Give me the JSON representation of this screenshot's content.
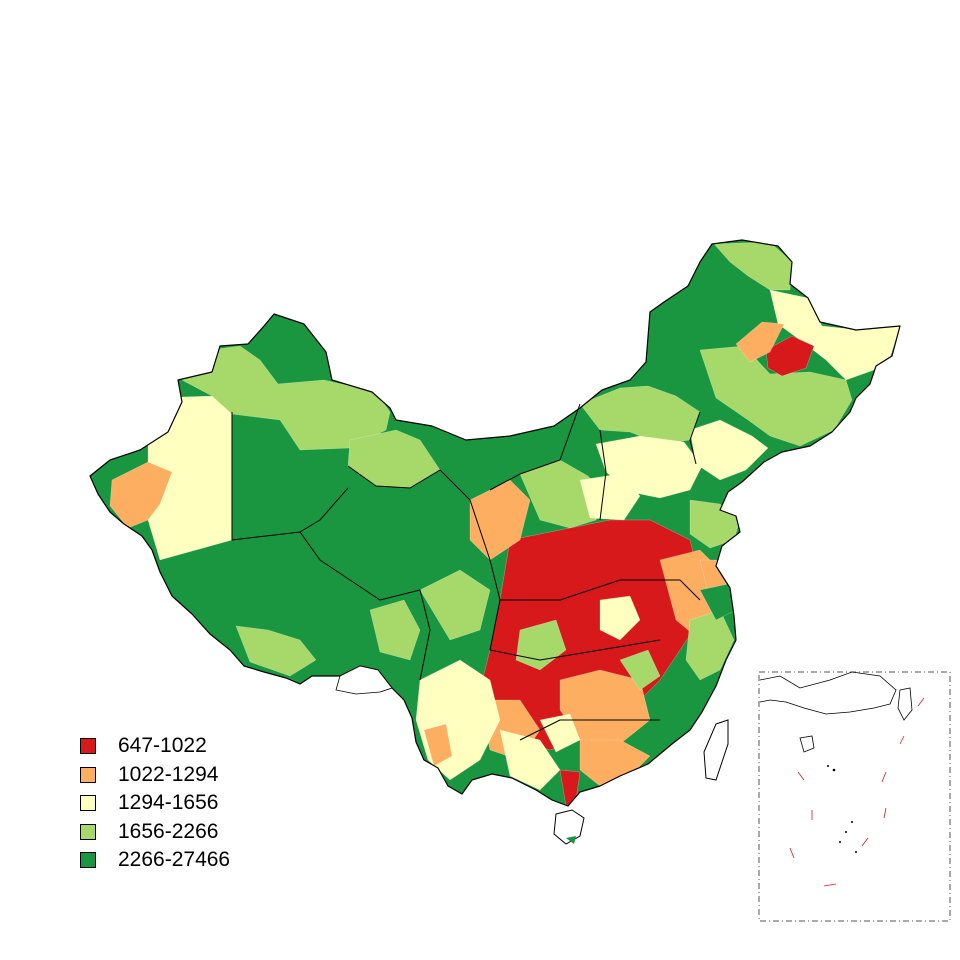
{
  "legend": {
    "items": [
      {
        "label": "647-1022",
        "color": "#d7191c"
      },
      {
        "label": "1022-1294",
        "color": "#fdae61"
      },
      {
        "label": "1294-1656",
        "color": "#ffffbf"
      },
      {
        "label": "1656-2266",
        "color": "#a6d96a"
      },
      {
        "label": "2266-27466",
        "color": "#1a9641"
      }
    ]
  }
}
